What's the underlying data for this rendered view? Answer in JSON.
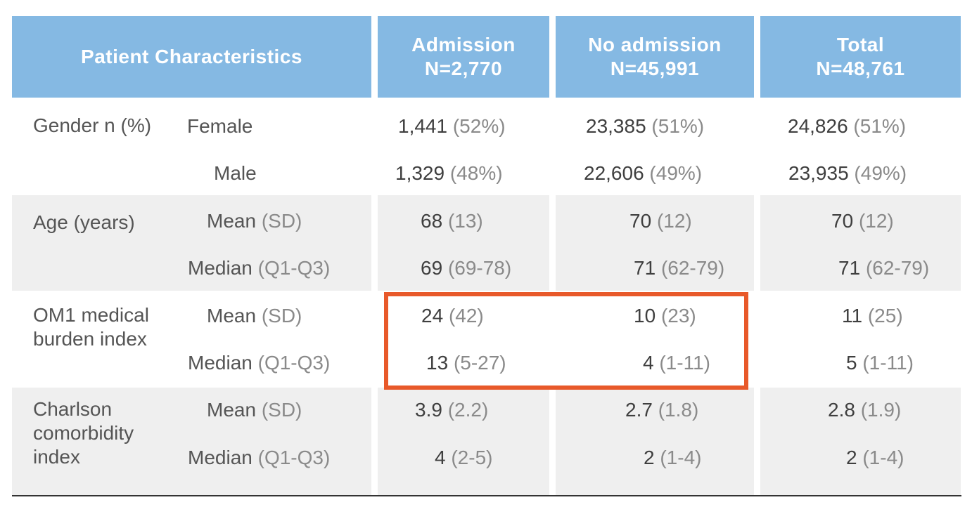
{
  "header": {
    "characteristics": "Patient Characteristics",
    "admission": {
      "title": "Admission",
      "n": "N=2,770"
    },
    "no_admission": {
      "title": "No admission",
      "n": "N=45,991"
    },
    "total": {
      "title": "Total",
      "n": "N=48,761"
    }
  },
  "rows": {
    "gender": {
      "label": "Gender n (%)",
      "female": {
        "label": "Female",
        "adm": "1,441",
        "adm_p": "(52%)",
        "no": "23,385",
        "no_p": "(51%)",
        "tot": "24,826",
        "tot_p": "(51%)"
      },
      "male": {
        "label": "Male",
        "adm": "1,329",
        "adm_p": "(48%)",
        "no": "22,606",
        "no_p": "(49%)",
        "tot": "23,935",
        "tot_p": "(49%)"
      }
    },
    "age": {
      "label": "Age (years)",
      "mean": {
        "label": "Mean",
        "stat": "(SD)",
        "adm": "68",
        "adm_p": "(13)",
        "no": "70",
        "no_p": "(12)",
        "tot": "70",
        "tot_p": "(12)"
      },
      "median": {
        "label": "Median",
        "stat": "(Q1-Q3)",
        "adm": "69",
        "adm_p": "(69-78)",
        "no": "71",
        "no_p": "(62-79)",
        "tot": "71",
        "tot_p": "(62-79)"
      }
    },
    "om1": {
      "label_line1": "OM1 medical",
      "label_line2": "burden index",
      "mean": {
        "label": "Mean",
        "stat": "(SD)",
        "adm": "24",
        "adm_p": "(42)",
        "no": "10",
        "no_p": "(23)",
        "tot": "11",
        "tot_p": "(25)"
      },
      "median": {
        "label": "Median",
        "stat": "(Q1-Q3)",
        "adm": "13",
        "adm_p": "(5-27)",
        "no": "4",
        "no_p": "(1-11)",
        "tot": "5",
        "tot_p": "(1-11)"
      }
    },
    "charlson": {
      "label_line1": "Charlson",
      "label_line2": "comorbidity",
      "label_line3": "index",
      "mean": {
        "label": "Mean",
        "stat": "(SD)",
        "adm": "3.9",
        "adm_p": "(2.2)",
        "no": "2.7",
        "no_p": "(1.8)",
        "tot": "2.8",
        "tot_p": "(1.9)"
      },
      "median": {
        "label": "Median",
        "stat": "(Q1-Q3)",
        "adm": "4",
        "adm_p": "(2-5)",
        "no": "2",
        "no_p": "(1-4)",
        "tot": "2",
        "tot_p": "(1-4)"
      }
    }
  },
  "colors": {
    "header_bg": "#85b9e3",
    "row_shade": "#efefef",
    "highlight": "#e8592a"
  }
}
